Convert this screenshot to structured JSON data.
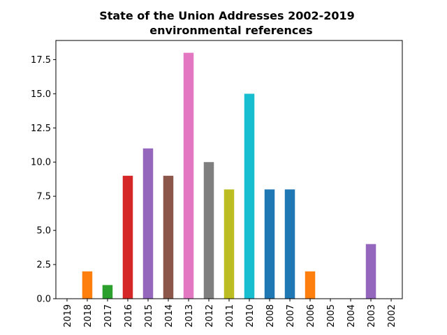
{
  "chart_data": {
    "type": "bar",
    "title": "State of the Union Addresses 2002-2019\nenvironmental references",
    "xlabel": "",
    "ylabel": "",
    "ylim": [
      0,
      18.9
    ],
    "yticks": [
      "0.0",
      "2.5",
      "5.0",
      "7.5",
      "10.0",
      "12.5",
      "15.0",
      "17.5"
    ],
    "grid": false,
    "categories": [
      "2019",
      "2018",
      "2017",
      "2016",
      "2015",
      "2014",
      "2013",
      "2012",
      "2011",
      "2010",
      "2008",
      "2007",
      "2006",
      "2005",
      "2004",
      "2003",
      "2002"
    ],
    "values": [
      0,
      2,
      1,
      9,
      11,
      9,
      18,
      10,
      8,
      15,
      8,
      8,
      2,
      0,
      0,
      4,
      0
    ],
    "colors": [
      "#1f77b4",
      "#ff7f0e",
      "#2ca02c",
      "#d62728",
      "#9467bd",
      "#8c564b",
      "#e377c2",
      "#7f7f7f",
      "#bcbd22",
      "#17becf",
      "#1f77b4",
      "#1f77b4",
      "#ff7f0e",
      "#2ca02c",
      "#d62728",
      "#9467bd",
      "#8c564b"
    ]
  }
}
